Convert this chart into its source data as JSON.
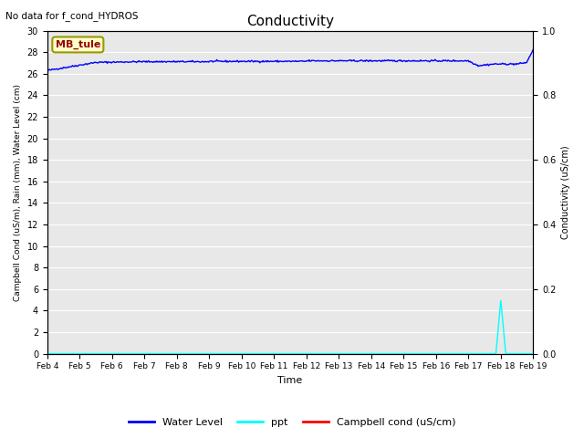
{
  "title": "Conductivity",
  "top_left_text": "No data for f_cond_HYDROS",
  "ylabel_left": "Campbell Cond (uS/m), Rain (mm), Water Level (cm)",
  "ylabel_right": "Conductivity (uS/cm)",
  "xlabel": "Time",
  "ylim_left": [
    0,
    30
  ],
  "ylim_right": [
    0,
    1.0
  ],
  "background_color": "#e8e8e8",
  "legend_entries": [
    "Water Level",
    "ppt",
    "Campbell cond (uS/cm)"
  ],
  "water_level_color": "blue",
  "ppt_color": "cyan",
  "campbell_color": "red",
  "box_label": "MB_tule",
  "box_bg": "#ffffcc",
  "box_border": "#999900",
  "box_text_color": "#990000",
  "num_days": 16,
  "day_start": 4
}
